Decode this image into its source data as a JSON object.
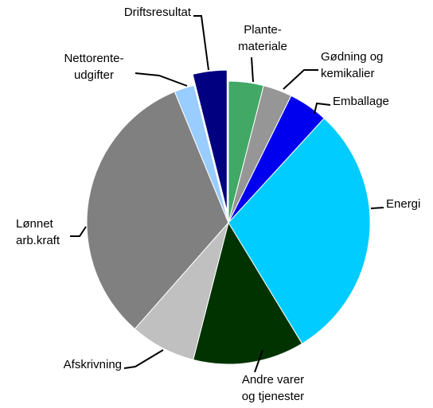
{
  "chart_data": {
    "type": "pie",
    "categories": [
      "Plante-\nmateriale",
      "Gødning og\nkemikalier",
      "Emballage",
      "Energi",
      "Andre varer\nog tjenester",
      "Afskrivning",
      "Lønnet\narb.kraft",
      "Nettorente-\nudgifter",
      "Driftsresultat"
    ],
    "values": [
      4,
      3.3,
      4.5,
      29.5,
      12.7,
      7.5,
      32.3,
      2.3,
      3.9
    ],
    "colors": [
      "#41a865",
      "#969696",
      "#0000ee",
      "#00ccff",
      "#003300",
      "#c0c0c0",
      "#808080",
      "#99ccff",
      "#000080"
    ],
    "exploded": [
      8
    ]
  }
}
